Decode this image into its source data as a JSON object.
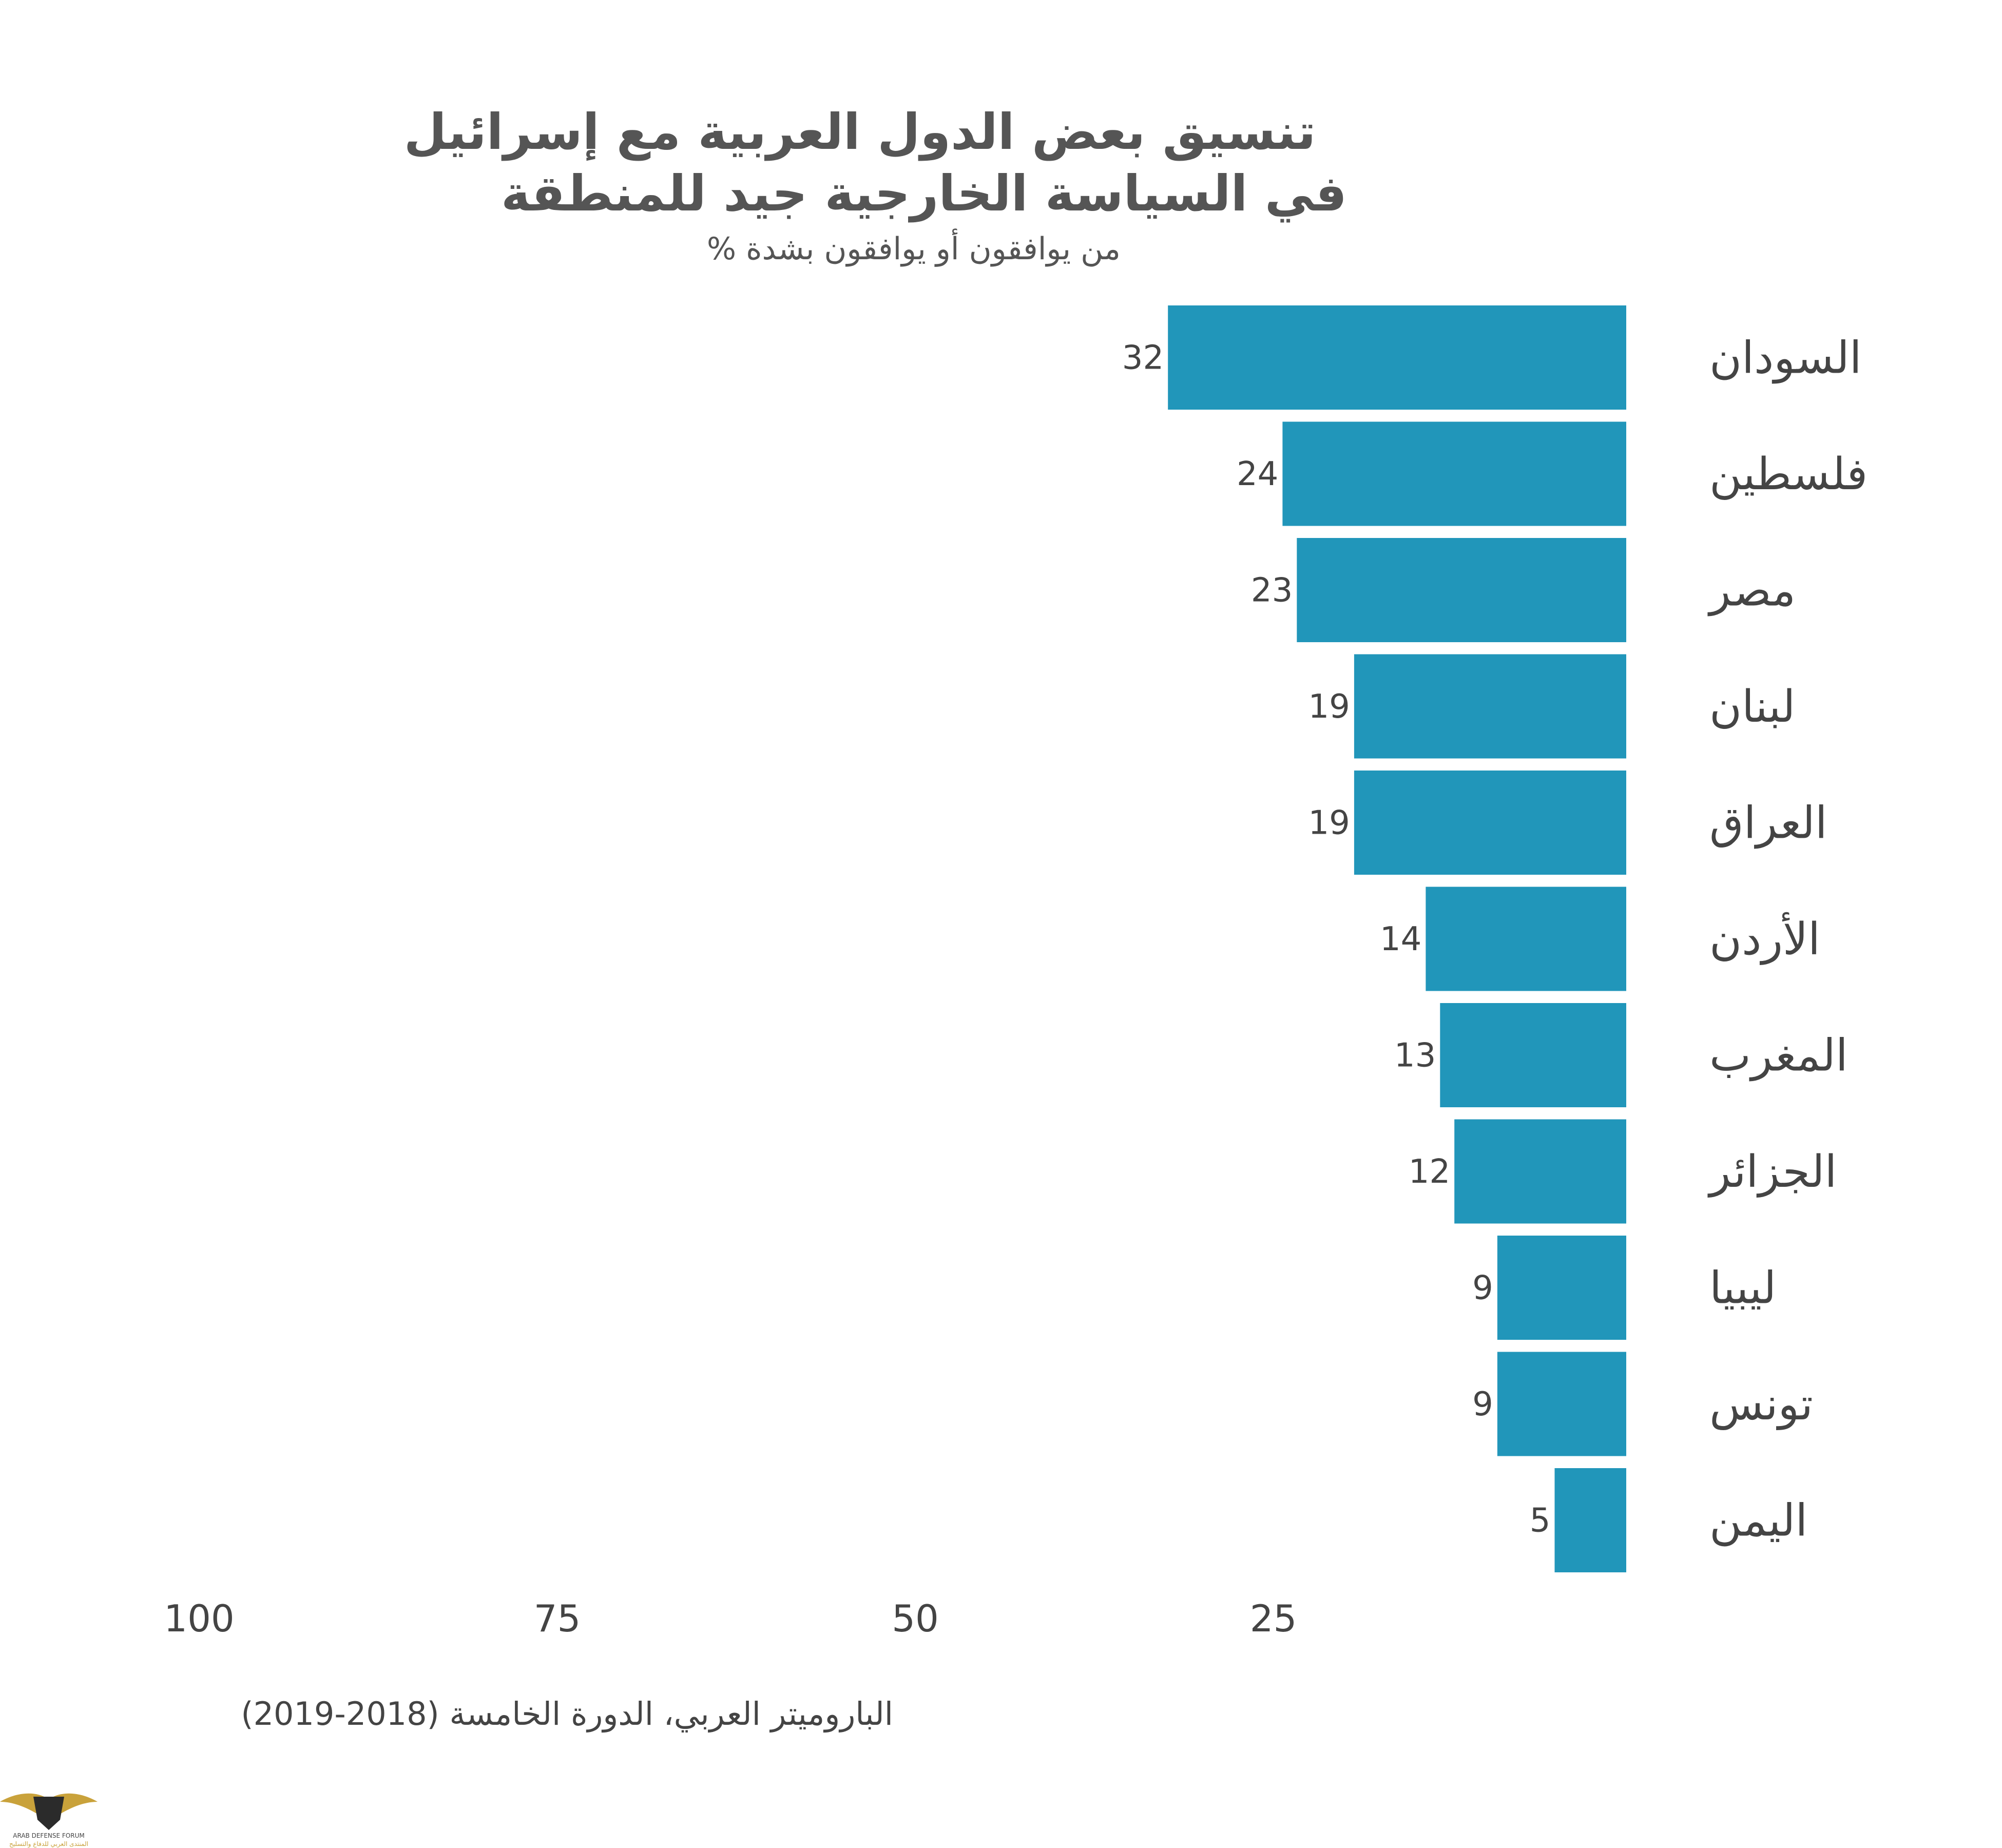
{
  "chart_data": {
    "type": "bar",
    "orientation": "horizontal",
    "title": "تنسيق بعض الدول العربية مع إسرائيل",
    "title_line2": "في السياسة الخارجية جيد للمنطقة",
    "subtitle": "% من يوافقون أو يوافقون بشدة",
    "categories": [
      "السودان",
      "فلسطين",
      "مصر",
      "لبنان",
      "العراق",
      "الأردن",
      "المغرب",
      "الجزائر",
      "ليبيا",
      "تونس",
      "اليمن"
    ],
    "values": [
      32,
      24,
      23,
      19,
      19,
      14,
      13,
      12,
      9,
      9,
      5
    ],
    "value_labels": [
      "32",
      "24",
      "23",
      "19",
      "19",
      "14",
      "13",
      "12",
      "9",
      "9",
      "5"
    ],
    "x_ticks": [
      "100",
      "75",
      "50",
      "25"
    ],
    "x_tick_values": [
      100,
      75,
      50,
      25
    ],
    "xlim": [
      0,
      100
    ],
    "bar_direction": "right-to-left",
    "grid": false,
    "bar_color": "#2196BA",
    "text_color": "#444444",
    "source": "الباروميتر العربي، الدورة الخامسة (2018-2019)"
  },
  "logo": {
    "text_en": "ARAB DEFENSE FORUM",
    "text_ar": "المنتدى العربي للدفاع والتسليح"
  }
}
